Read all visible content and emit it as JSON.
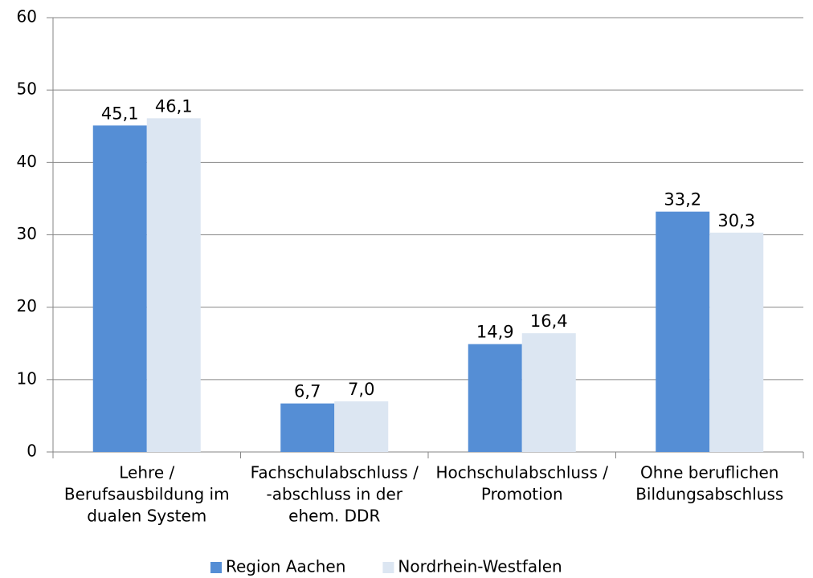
{
  "chart_data": {
    "type": "bar",
    "categories": [
      [
        "Lehre /",
        "Berufsausbildung im",
        "dualen System"
      ],
      [
        "Fachschulabschluss /",
        "-abschluss in der",
        "ehem. DDR"
      ],
      [
        "Hochschulabschluss /",
        "Promotion"
      ],
      [
        "Ohne beruflichen",
        "Bildungsabschluss"
      ]
    ],
    "series": [
      {
        "name": "Region Aachen",
        "color": "#558ed5",
        "values": [
          45.1,
          6.7,
          14.9,
          33.2
        ],
        "value_labels": [
          "45,1",
          "6,7",
          "14,9",
          "33,2"
        ]
      },
      {
        "name": "Nordrhein-Westfalen",
        "color": "#dce6f2",
        "values": [
          46.1,
          7.0,
          16.4,
          30.3
        ],
        "value_labels": [
          "46,1",
          "7,0",
          "16,4",
          "30,3"
        ]
      }
    ],
    "ylim": [
      0,
      60
    ],
    "yticks": [
      0,
      10,
      20,
      30,
      40,
      50,
      60
    ],
    "grid": true,
    "legend": "bottom"
  }
}
